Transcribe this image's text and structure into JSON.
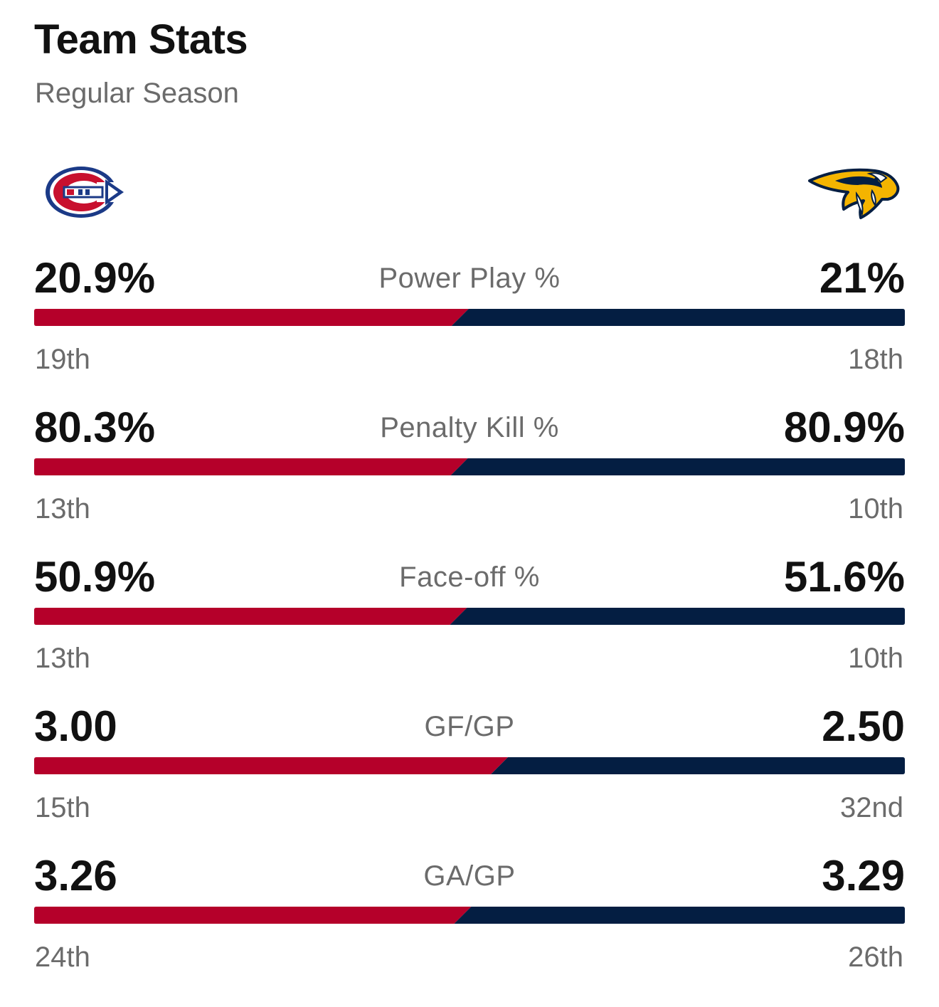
{
  "header": {
    "title": "Team Stats",
    "subtitle": "Regular Season"
  },
  "teams": {
    "home": {
      "logo_icon": "canadiens-logo-icon",
      "color": "#b5002a"
    },
    "away": {
      "logo_icon": "predators-logo-icon",
      "color": "#041e42"
    }
  },
  "stats": [
    {
      "label": "Power Play %",
      "home_value": "20.9%",
      "away_value": "21%",
      "home_rank": "19th",
      "away_rank": "18th",
      "home_share": 0.499,
      "away_share": 0.501
    },
    {
      "label": "Penalty Kill %",
      "home_value": "80.3%",
      "away_value": "80.9%",
      "home_rank": "13th",
      "away_rank": "10th",
      "home_share": 0.498,
      "away_share": 0.502
    },
    {
      "label": "Face-off %",
      "home_value": "50.9%",
      "away_value": "51.6%",
      "home_rank": "13th",
      "away_rank": "10th",
      "home_share": 0.497,
      "away_share": 0.503
    },
    {
      "label": "GF/GP",
      "home_value": "3.00",
      "away_value": "2.50",
      "home_rank": "15th",
      "away_rank": "32nd",
      "home_share": 0.545,
      "away_share": 0.455
    },
    {
      "label": "GA/GP",
      "home_value": "3.26",
      "away_value": "3.29",
      "home_rank": "24th",
      "away_rank": "26th",
      "home_share": 0.502,
      "away_share": 0.498
    }
  ]
}
